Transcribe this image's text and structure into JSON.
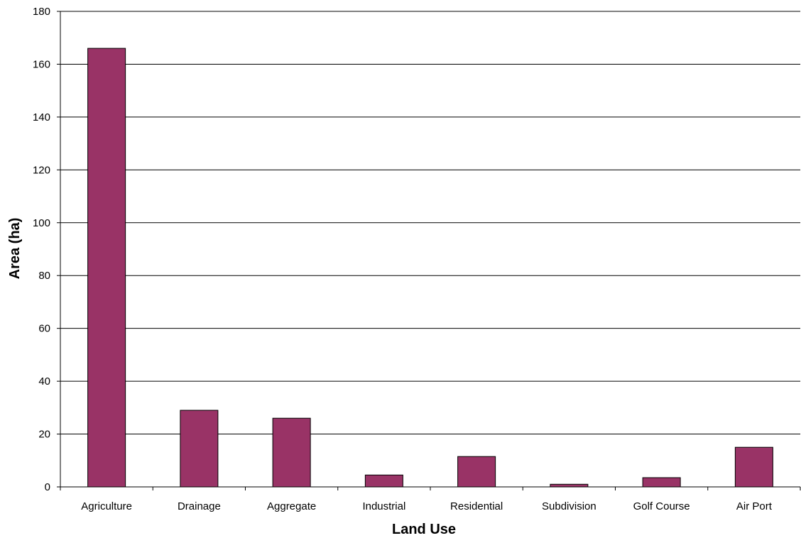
{
  "chart_data": {
    "type": "bar",
    "title": "",
    "xlabel": "Land Use",
    "ylabel": "Area (ha)",
    "categories": [
      "Agriculture",
      "Drainage",
      "Aggregate",
      "Industrial",
      "Residential",
      "Subdivision",
      "Golf Course",
      "Air Port"
    ],
    "values": [
      166,
      29,
      26,
      4.5,
      11.5,
      1,
      3.5,
      15
    ],
    "ylim": [
      0,
      180
    ],
    "yticks": [
      "0",
      "20",
      "40",
      "60",
      "80",
      "100",
      "120",
      "140",
      "160",
      "180"
    ],
    "grid": true,
    "legend": "none",
    "bar_color": "#993366"
  }
}
